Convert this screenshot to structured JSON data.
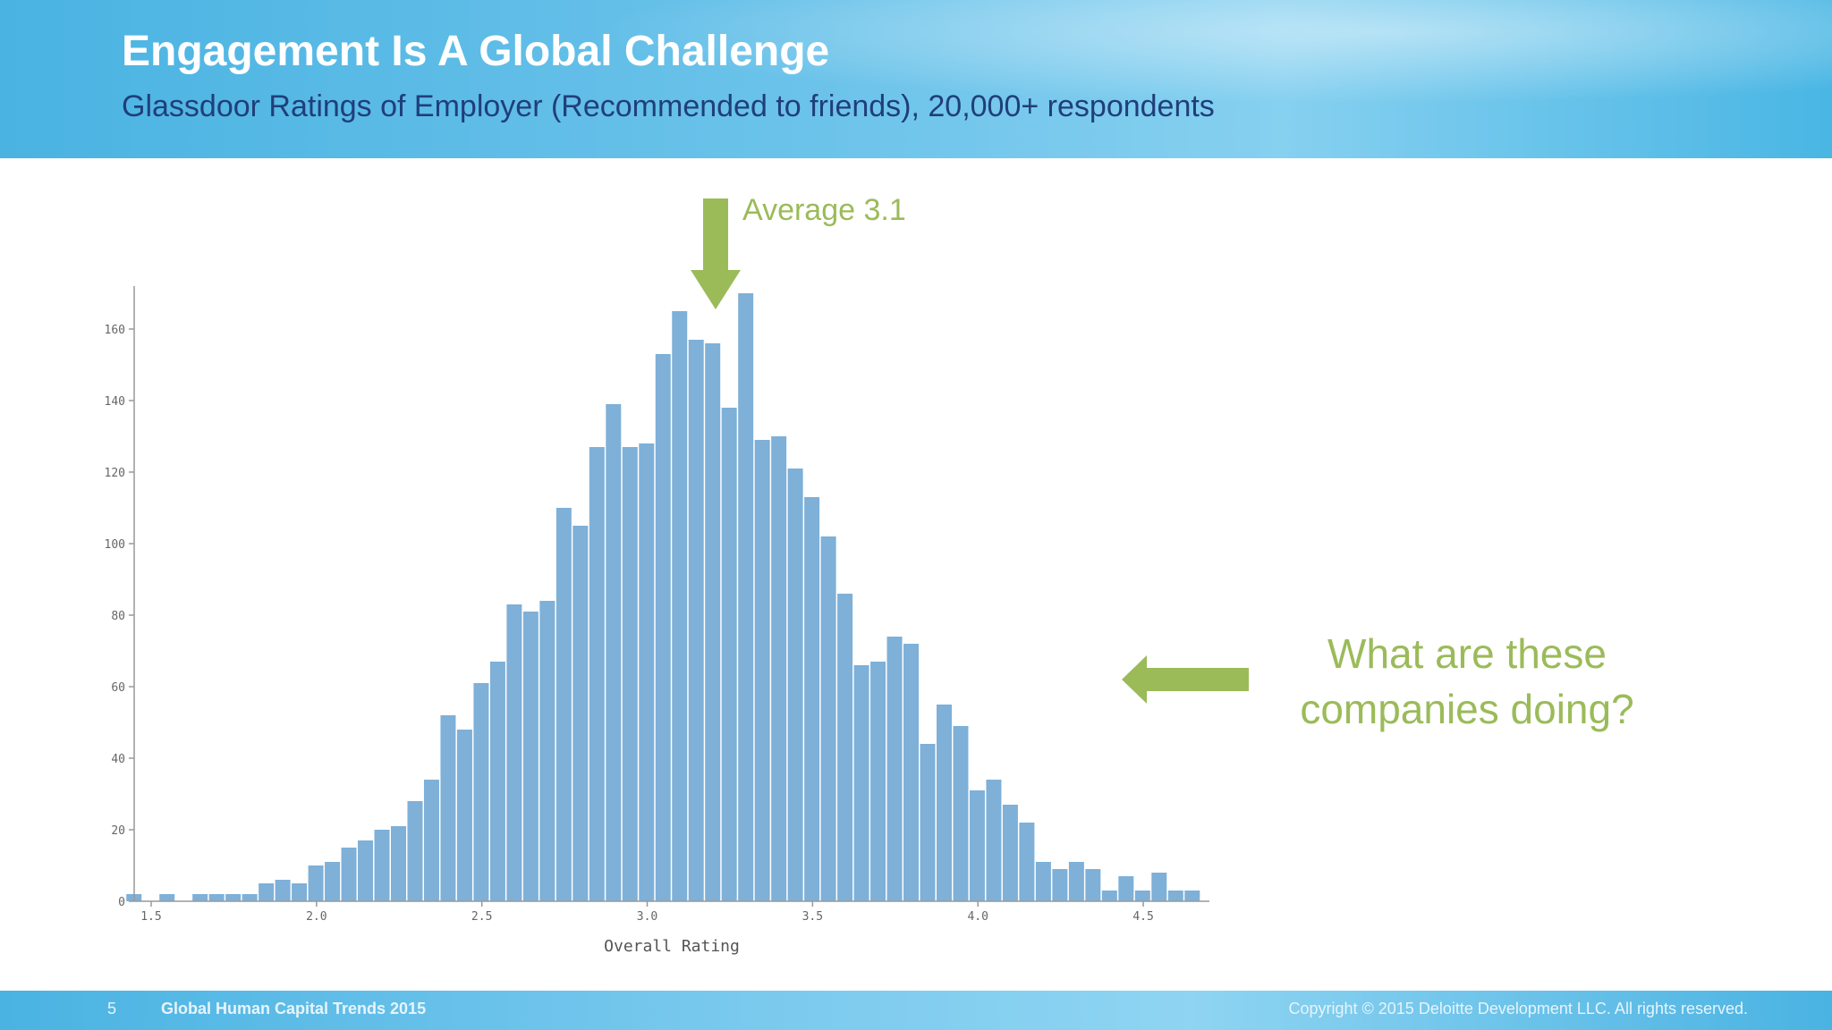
{
  "header": {
    "title": "Engagement Is A Global Challenge",
    "subtitle": "Glassdoor Ratings of Employer (Recommended to friends), 20,000+ respondents"
  },
  "annotations": {
    "average_label": "Average 3.1",
    "question_line1": "What are these",
    "question_line2": "companies doing?",
    "accent_color": "#9bbb59"
  },
  "footer": {
    "page_number": "5",
    "title": "Global Human Capital Trends 2015",
    "copyright": "Copyright © 2015 Deloitte Development LLC. All rights reserved."
  },
  "chart_data": {
    "type": "bar",
    "xlabel": "Overall Rating",
    "ylabel": "",
    "xlim": [
      1.4,
      4.7
    ],
    "ylim": [
      0,
      172
    ],
    "bin_width": 0.05,
    "xticks": [
      1.5,
      2.0,
      2.5,
      3.0,
      3.5,
      4.0,
      4.5
    ],
    "xtick_labels": [
      "1.5",
      "2.0",
      "2.5",
      "3.0",
      "3.5",
      "4.0",
      "4.5"
    ],
    "yticks": [
      0,
      20,
      40,
      60,
      80,
      100,
      120,
      140,
      160
    ],
    "ytick_labels": [
      "0",
      "20",
      "40",
      "60",
      "80",
      "100",
      "120",
      "140",
      "160"
    ],
    "bar_color": "#7eb0d8",
    "bins": [
      {
        "x": 1.45,
        "count": 2
      },
      {
        "x": 1.5,
        "count": 0
      },
      {
        "x": 1.55,
        "count": 2
      },
      {
        "x": 1.6,
        "count": 0
      },
      {
        "x": 1.65,
        "count": 2
      },
      {
        "x": 1.7,
        "count": 2
      },
      {
        "x": 1.75,
        "count": 2
      },
      {
        "x": 1.8,
        "count": 2
      },
      {
        "x": 1.85,
        "count": 5
      },
      {
        "x": 1.9,
        "count": 6
      },
      {
        "x": 1.95,
        "count": 5
      },
      {
        "x": 2.0,
        "count": 10
      },
      {
        "x": 2.05,
        "count": 11
      },
      {
        "x": 2.1,
        "count": 15
      },
      {
        "x": 2.15,
        "count": 17
      },
      {
        "x": 2.2,
        "count": 20
      },
      {
        "x": 2.25,
        "count": 21
      },
      {
        "x": 2.3,
        "count": 28
      },
      {
        "x": 2.35,
        "count": 34
      },
      {
        "x": 2.4,
        "count": 52
      },
      {
        "x": 2.45,
        "count": 48
      },
      {
        "x": 2.5,
        "count": 61
      },
      {
        "x": 2.55,
        "count": 67
      },
      {
        "x": 2.6,
        "count": 83
      },
      {
        "x": 2.65,
        "count": 81
      },
      {
        "x": 2.7,
        "count": 84
      },
      {
        "x": 2.75,
        "count": 110
      },
      {
        "x": 2.8,
        "count": 105
      },
      {
        "x": 2.85,
        "count": 127
      },
      {
        "x": 2.9,
        "count": 139
      },
      {
        "x": 2.95,
        "count": 127
      },
      {
        "x": 3.0,
        "count": 128
      },
      {
        "x": 3.05,
        "count": 153
      },
      {
        "x": 3.1,
        "count": 165
      },
      {
        "x": 3.15,
        "count": 157
      },
      {
        "x": 3.2,
        "count": 156
      },
      {
        "x": 3.25,
        "count": 138
      },
      {
        "x": 3.3,
        "count": 170
      },
      {
        "x": 3.35,
        "count": 129
      },
      {
        "x": 3.4,
        "count": 130
      },
      {
        "x": 3.45,
        "count": 121
      },
      {
        "x": 3.5,
        "count": 113
      },
      {
        "x": 3.55,
        "count": 102
      },
      {
        "x": 3.6,
        "count": 86
      },
      {
        "x": 3.65,
        "count": 66
      },
      {
        "x": 3.7,
        "count": 67
      },
      {
        "x": 3.75,
        "count": 74
      },
      {
        "x": 3.8,
        "count": 72
      },
      {
        "x": 3.85,
        "count": 44
      },
      {
        "x": 3.9,
        "count": 55
      },
      {
        "x": 3.95,
        "count": 49
      },
      {
        "x": 4.0,
        "count": 31
      },
      {
        "x": 4.05,
        "count": 34
      },
      {
        "x": 4.1,
        "count": 27
      },
      {
        "x": 4.15,
        "count": 22
      },
      {
        "x": 4.2,
        "count": 11
      },
      {
        "x": 4.25,
        "count": 9
      },
      {
        "x": 4.3,
        "count": 11
      },
      {
        "x": 4.35,
        "count": 9
      },
      {
        "x": 4.4,
        "count": 3
      },
      {
        "x": 4.45,
        "count": 7
      },
      {
        "x": 4.5,
        "count": 3
      },
      {
        "x": 4.55,
        "count": 8
      },
      {
        "x": 4.6,
        "count": 3
      },
      {
        "x": 4.65,
        "count": 3
      }
    ]
  }
}
